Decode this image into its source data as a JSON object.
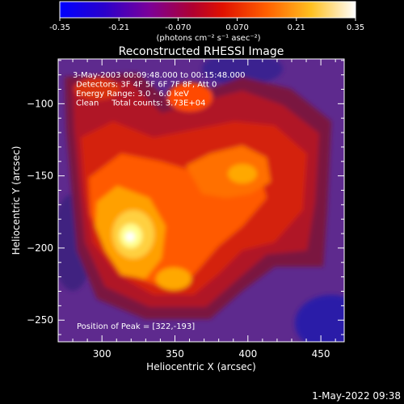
{
  "colorbar": {
    "ticks": [
      "-0.35",
      "-0.21",
      "-0.070",
      "0.070",
      "0.21",
      "0.35"
    ],
    "unit_label": "(photons cm⁻² s⁻¹ asec⁻²)"
  },
  "chart_data": {
    "type": "heatmap",
    "title": "Reconstructed RHESSI Image",
    "xlabel": "Heliocentric X (arcsec)",
    "ylabel": "Heliocentric Y (arcsec)",
    "xlim": [
      270,
      466
    ],
    "ylim": [
      -265,
      -69
    ],
    "x_ticks": [
      300,
      350,
      400,
      450
    ],
    "y_ticks": [
      -100,
      -150,
      -200,
      -250
    ],
    "color_range": [
      -0.35,
      0.35
    ],
    "annotations": [
      "3-May-2003 00:09:48.000 to 00:15:48.000",
      "Detectors: 3F 4F 5F 6F 7F 8F, Att 0",
      "Energy Range: 3.0 - 6.0 keV",
      "Clean     Total counts: 3.73E+04"
    ],
    "peak_label": "Position of Peak = [322,-193]",
    "peak": [
      322,
      -193
    ],
    "peak_value": 0.35
  },
  "footer": {
    "timestamp": "1-May-2022 09:38"
  }
}
